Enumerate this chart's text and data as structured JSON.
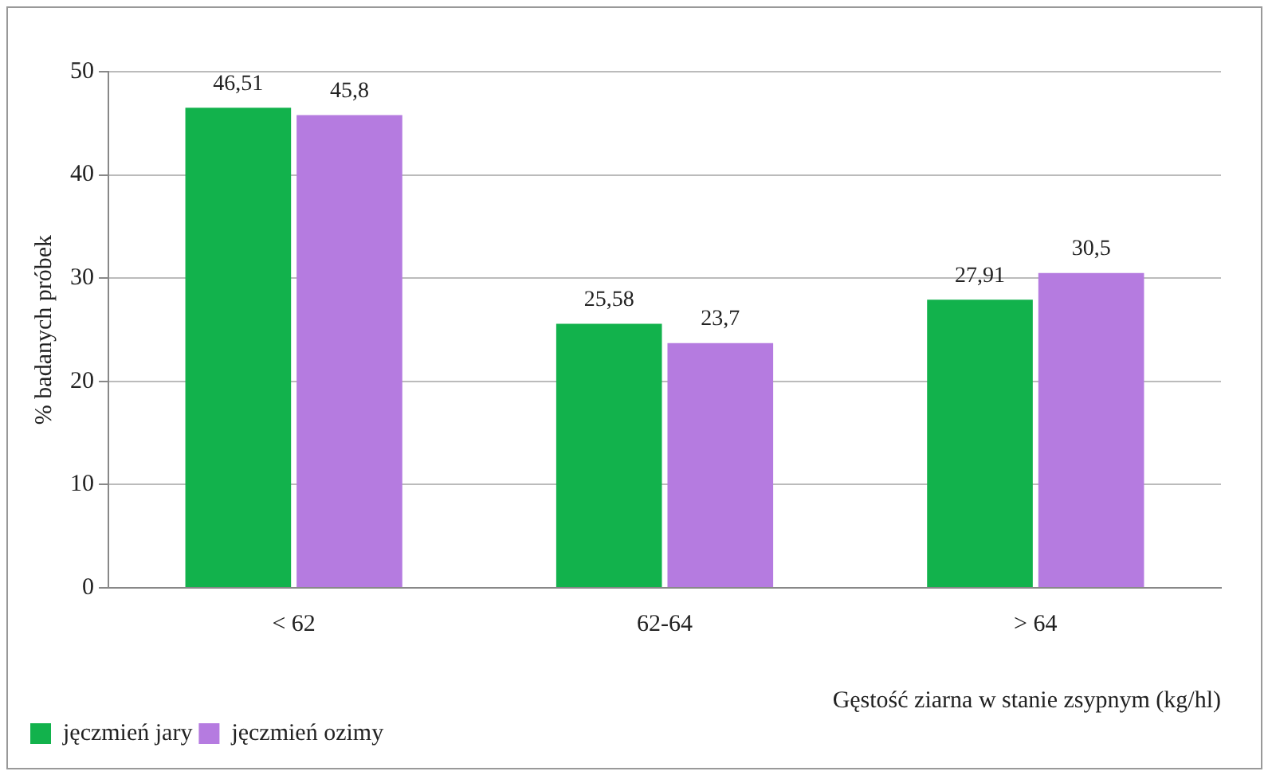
{
  "chart_data": {
    "type": "bar",
    "ylabel": "% badanych próbek",
    "xlabel": "Gęstość ziarna w stanie zsypnym (kg/hl)",
    "categories": [
      "< 62",
      "62-64",
      "> 64"
    ],
    "series": [
      {
        "name": "jęczmień jary",
        "color": "#12b24c",
        "values": [
          46.51,
          25.58,
          27.91
        ],
        "value_labels": [
          "46,51",
          "25,58",
          "27,91"
        ]
      },
      {
        "name": "jęczmień ozimy",
        "color": "#b57be0",
        "values": [
          45.8,
          23.7,
          30.5
        ],
        "value_labels": [
          "45,8",
          "23,7",
          "30,5"
        ]
      }
    ],
    "ylim": [
      0,
      50
    ],
    "yticks": [
      0,
      10,
      20,
      30,
      40,
      50
    ],
    "grid": "y",
    "legend": "bottom left"
  }
}
